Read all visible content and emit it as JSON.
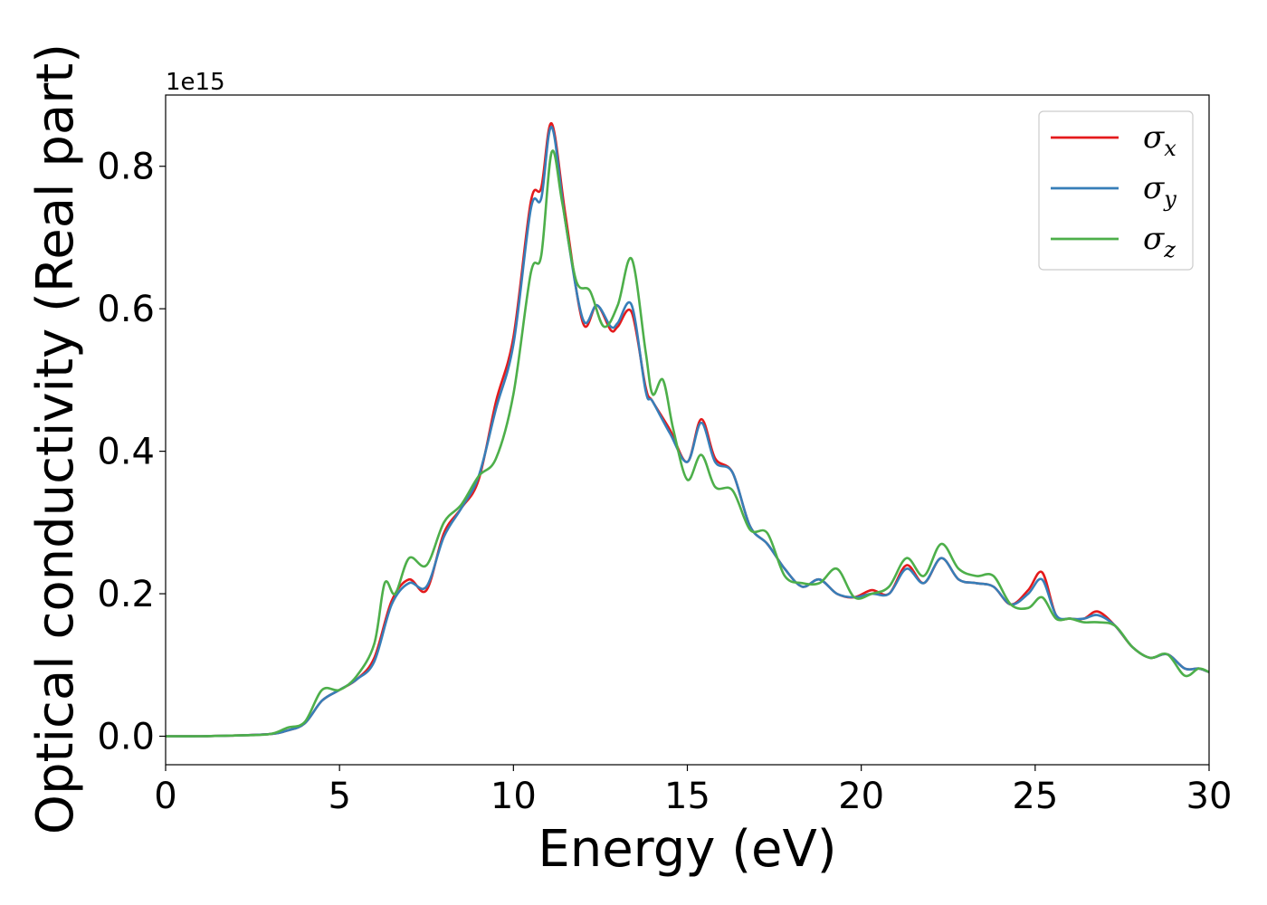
{
  "chart_data": {
    "type": "line",
    "xlabel": "Energy (eV)",
    "ylabel": "Optical conductivity (Real part)",
    "y_offset_text": "1e15",
    "y_scale": 1000000000000000.0,
    "xlim": [
      0,
      30
    ],
    "ylim": [
      -0.04,
      0.9
    ],
    "xticks": [
      0,
      5,
      10,
      15,
      20,
      25,
      30
    ],
    "yticks": [
      0.0,
      0.2,
      0.4,
      0.6,
      0.8
    ],
    "xtick_labels": [
      "0",
      "5",
      "10",
      "15",
      "20",
      "25",
      "30"
    ],
    "ytick_labels": [
      "0.0",
      "0.2",
      "0.4",
      "0.6",
      "0.8"
    ],
    "grid": false,
    "legend_position": "top-right",
    "series": [
      {
        "name": "σx",
        "name_base": "σ",
        "name_sub": "x",
        "color": "#e41a1c",
        "x": [
          0,
          1,
          2,
          3,
          3.5,
          4,
          4.5,
          5,
          5.5,
          6,
          6.5,
          7,
          7.5,
          8,
          8.5,
          9,
          9.5,
          10,
          10.5,
          10.8,
          11.1,
          11.5,
          12,
          12.4,
          12.8,
          13,
          13.4,
          13.8,
          14,
          14.5,
          15,
          15.4,
          15.8,
          16.3,
          16.8,
          17.3,
          17.8,
          18.3,
          18.8,
          19.3,
          19.8,
          20.3,
          20.8,
          21.3,
          21.8,
          22.3,
          22.8,
          23.3,
          23.8,
          24.3,
          24.8,
          25.2,
          25.6,
          26,
          26.4,
          26.8,
          27.3,
          27.8,
          28.3,
          28.8,
          29.3,
          29.7,
          30
        ],
        "y": [
          0,
          0,
          0.001,
          0.003,
          0.008,
          0.018,
          0.05,
          0.065,
          0.08,
          0.11,
          0.19,
          0.22,
          0.205,
          0.285,
          0.32,
          0.36,
          0.47,
          0.56,
          0.75,
          0.77,
          0.86,
          0.73,
          0.58,
          0.605,
          0.57,
          0.575,
          0.595,
          0.49,
          0.47,
          0.43,
          0.385,
          0.445,
          0.39,
          0.37,
          0.295,
          0.27,
          0.235,
          0.21,
          0.22,
          0.2,
          0.195,
          0.205,
          0.2,
          0.24,
          0.215,
          0.25,
          0.22,
          0.215,
          0.21,
          0.185,
          0.205,
          0.23,
          0.17,
          0.165,
          0.165,
          0.175,
          0.155,
          0.125,
          0.11,
          0.115,
          0.095,
          0.095,
          0.09
        ]
      },
      {
        "name": "σy",
        "name_base": "σ",
        "name_sub": "y",
        "color": "#377eb8",
        "x": [
          0,
          1,
          2,
          3,
          3.5,
          4,
          4.5,
          5,
          5.5,
          6,
          6.5,
          7,
          7.5,
          8,
          8.5,
          9,
          9.5,
          10,
          10.5,
          10.8,
          11.1,
          11.5,
          12,
          12.4,
          12.8,
          13,
          13.4,
          13.8,
          14,
          14.5,
          15,
          15.4,
          15.8,
          16.3,
          16.8,
          17.3,
          17.8,
          18.3,
          18.8,
          19.3,
          19.8,
          20.3,
          20.8,
          21.3,
          21.8,
          22.3,
          22.8,
          23.3,
          23.8,
          24.3,
          24.8,
          25.2,
          25.6,
          26,
          26.4,
          26.8,
          27.3,
          27.8,
          28.3,
          28.8,
          29.3,
          29.7,
          30
        ],
        "y": [
          0,
          0,
          0.001,
          0.003,
          0.008,
          0.018,
          0.05,
          0.065,
          0.08,
          0.105,
          0.185,
          0.215,
          0.21,
          0.28,
          0.32,
          0.365,
          0.46,
          0.55,
          0.74,
          0.755,
          0.855,
          0.72,
          0.585,
          0.605,
          0.575,
          0.58,
          0.605,
          0.485,
          0.47,
          0.425,
          0.385,
          0.44,
          0.385,
          0.37,
          0.295,
          0.27,
          0.235,
          0.21,
          0.22,
          0.2,
          0.195,
          0.2,
          0.2,
          0.235,
          0.215,
          0.25,
          0.22,
          0.215,
          0.21,
          0.185,
          0.2,
          0.22,
          0.17,
          0.165,
          0.165,
          0.17,
          0.155,
          0.125,
          0.11,
          0.115,
          0.095,
          0.095,
          0.09
        ]
      },
      {
        "name": "σz",
        "name_base": "σ",
        "name_sub": "z",
        "color": "#4daf4a",
        "x": [
          0,
          1,
          2,
          3,
          3.5,
          4,
          4.5,
          5,
          5.5,
          6,
          6.3,
          6.6,
          7,
          7.5,
          8,
          8.5,
          9,
          9.5,
          10,
          10.5,
          10.8,
          11.1,
          11.4,
          11.8,
          12.2,
          12.6,
          13,
          13.4,
          13.8,
          14,
          14.3,
          14.6,
          15,
          15.4,
          15.8,
          16.3,
          16.8,
          17.3,
          17.8,
          18.3,
          18.8,
          19.3,
          19.8,
          20.3,
          20.8,
          21.3,
          21.8,
          22.3,
          22.8,
          23.3,
          23.8,
          24.3,
          24.8,
          25.2,
          25.6,
          26,
          26.4,
          26.8,
          27.3,
          27.8,
          28.3,
          28.8,
          29.3,
          29.7,
          30
        ],
        "y": [
          0,
          0,
          0.001,
          0.003,
          0.012,
          0.02,
          0.065,
          0.065,
          0.085,
          0.13,
          0.215,
          0.2,
          0.25,
          0.24,
          0.3,
          0.325,
          0.365,
          0.39,
          0.48,
          0.65,
          0.675,
          0.82,
          0.75,
          0.64,
          0.625,
          0.575,
          0.605,
          0.67,
          0.54,
          0.48,
          0.5,
          0.43,
          0.36,
          0.395,
          0.35,
          0.345,
          0.29,
          0.285,
          0.225,
          0.215,
          0.215,
          0.235,
          0.195,
          0.2,
          0.21,
          0.25,
          0.225,
          0.27,
          0.235,
          0.225,
          0.225,
          0.185,
          0.18,
          0.195,
          0.165,
          0.165,
          0.16,
          0.16,
          0.155,
          0.125,
          0.11,
          0.115,
          0.085,
          0.095,
          0.09
        ]
      }
    ]
  }
}
